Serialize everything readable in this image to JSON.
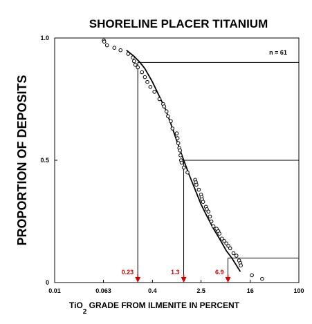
{
  "chart_data": {
    "type": "scatter",
    "title": "SHORELINE PLACER TITANIUM",
    "ylabel": "PROPORTION OF DEPOSITS",
    "xlabel_main": "TiO",
    "xlabel_sub": "2",
    "xlabel_rest": " GRADE FROM ILMENITE IN PERCENT",
    "x_scale": "log",
    "xlim": [
      0.01,
      100
    ],
    "ylim": [
      0,
      1
    ],
    "x_ticks": [
      {
        "value": 0.01,
        "label": "0.01"
      },
      {
        "value": 0.063,
        "label": "0.063"
      },
      {
        "value": 0.4,
        "label": "0.4"
      },
      {
        "value": 2.5,
        "label": "2.5"
      },
      {
        "value": 16,
        "label": "16"
      },
      {
        "value": 100,
        "label": "100"
      }
    ],
    "y_ticks": [
      {
        "value": 0,
        "label": "0"
      },
      {
        "value": 0.5,
        "label": "0.5"
      },
      {
        "value": 1,
        "label": "1.0"
      }
    ],
    "annotation": "n = 61",
    "grid": false,
    "colors": {
      "cutoff": "#d40000",
      "ink": "#000000"
    },
    "observed": {
      "x": [
        0.064,
        0.065,
        0.072,
        0.095,
        0.12,
        0.16,
        0.19,
        0.2,
        0.21,
        0.23,
        0.27,
        0.3,
        0.33,
        0.37,
        0.43,
        0.52,
        0.6,
        0.62,
        0.68,
        0.72,
        0.8,
        0.85,
        1.0,
        1.03,
        1.06,
        1.1,
        1.13,
        1.15,
        1.18,
        1.2,
        1.3,
        1.5,
        2.0,
        2.05,
        2.1,
        2.3,
        2.5,
        2.55,
        2.6,
        2.7,
        3.0,
        3.1,
        3.3,
        3.5,
        3.7,
        4.0,
        4.5,
        4.8,
        5.0,
        5.5,
        6.0,
        6.5,
        7.0,
        7.5,
        8.5,
        9.5,
        10.5,
        11.0,
        11.2,
        17.0,
        25.0
      ],
      "y": [
        0.99,
        0.985,
        0.97,
        0.96,
        0.95,
        0.935,
        0.92,
        0.905,
        0.89,
        0.88,
        0.86,
        0.84,
        0.82,
        0.8,
        0.78,
        0.75,
        0.73,
        0.72,
        0.7,
        0.68,
        0.66,
        0.63,
        0.61,
        0.59,
        0.57,
        0.55,
        0.54,
        0.52,
        0.5,
        0.49,
        0.47,
        0.45,
        0.42,
        0.41,
        0.4,
        0.38,
        0.36,
        0.35,
        0.34,
        0.33,
        0.31,
        0.3,
        0.29,
        0.27,
        0.25,
        0.23,
        0.22,
        0.21,
        0.2,
        0.18,
        0.17,
        0.16,
        0.15,
        0.14,
        0.12,
        0.11,
        0.09,
        0.08,
        0.07,
        0.03,
        0.015
      ]
    },
    "fitted_curve": {
      "x": [
        0.15,
        0.2,
        0.25,
        0.3,
        0.4,
        0.5,
        0.65,
        0.8,
        1.0,
        1.3,
        1.6,
        2.0,
        2.5,
        3.0,
        4.0,
        5.0,
        6.5,
        8.0,
        9.5,
        11.0
      ],
      "y": [
        0.95,
        0.925,
        0.9,
        0.875,
        0.82,
        0.77,
        0.71,
        0.65,
        0.58,
        0.5,
        0.44,
        0.38,
        0.32,
        0.28,
        0.22,
        0.18,
        0.13,
        0.1,
        0.07,
        0.045
      ]
    },
    "cutoffs": [
      {
        "proportion": 0.9,
        "grade": 0.23,
        "label": "0.23"
      },
      {
        "proportion": 0.5,
        "grade": 1.3,
        "label": "1.3"
      },
      {
        "proportion": 0.1,
        "grade": 6.9,
        "label": "6.9"
      }
    ]
  }
}
